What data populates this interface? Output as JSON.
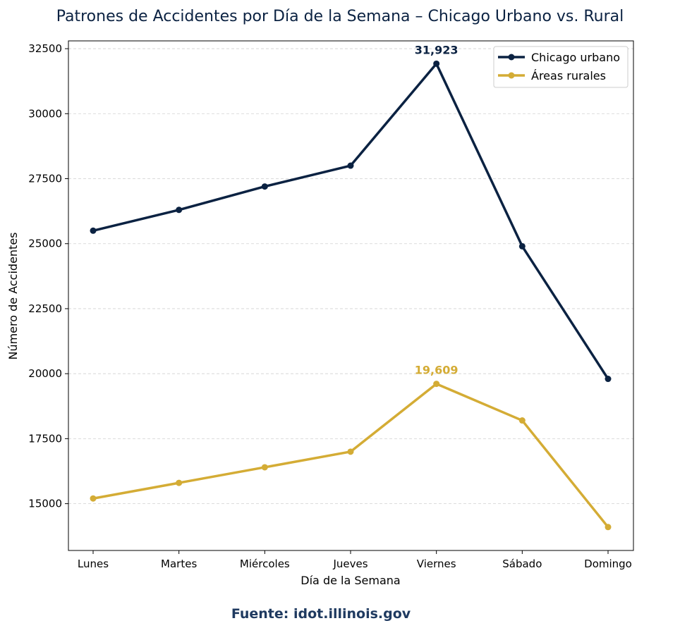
{
  "chart_data": {
    "type": "line",
    "title": "Patrones de Accidentes por Día de la Semana – Chicago Urbano vs. Rural",
    "xlabel": "Día de la Semana",
    "ylabel": "Número de Accidentes",
    "categories": [
      "Lunes",
      "Martes",
      "Miércoles",
      "Jueves",
      "Viernes",
      "Sábado",
      "Domingo"
    ],
    "ylim": [
      13200,
      32800
    ],
    "yticks": [
      15000,
      17500,
      20000,
      22500,
      25000,
      27500,
      30000,
      32500
    ],
    "grid": "y-dashed",
    "legend": "top-right",
    "series": [
      {
        "name": "Chicago urbano",
        "color": "#0b2242",
        "values": [
          25500,
          26300,
          27200,
          28000,
          31923,
          24900,
          19800
        ],
        "peak_label": "31,923"
      },
      {
        "name": "Áreas rurales",
        "color": "#d4ac35",
        "values": [
          15200,
          15800,
          16400,
          17000,
          19609,
          18200,
          14100
        ],
        "peak_label": "19,609"
      }
    ],
    "source": "Fuente: idot.illinois.gov"
  }
}
